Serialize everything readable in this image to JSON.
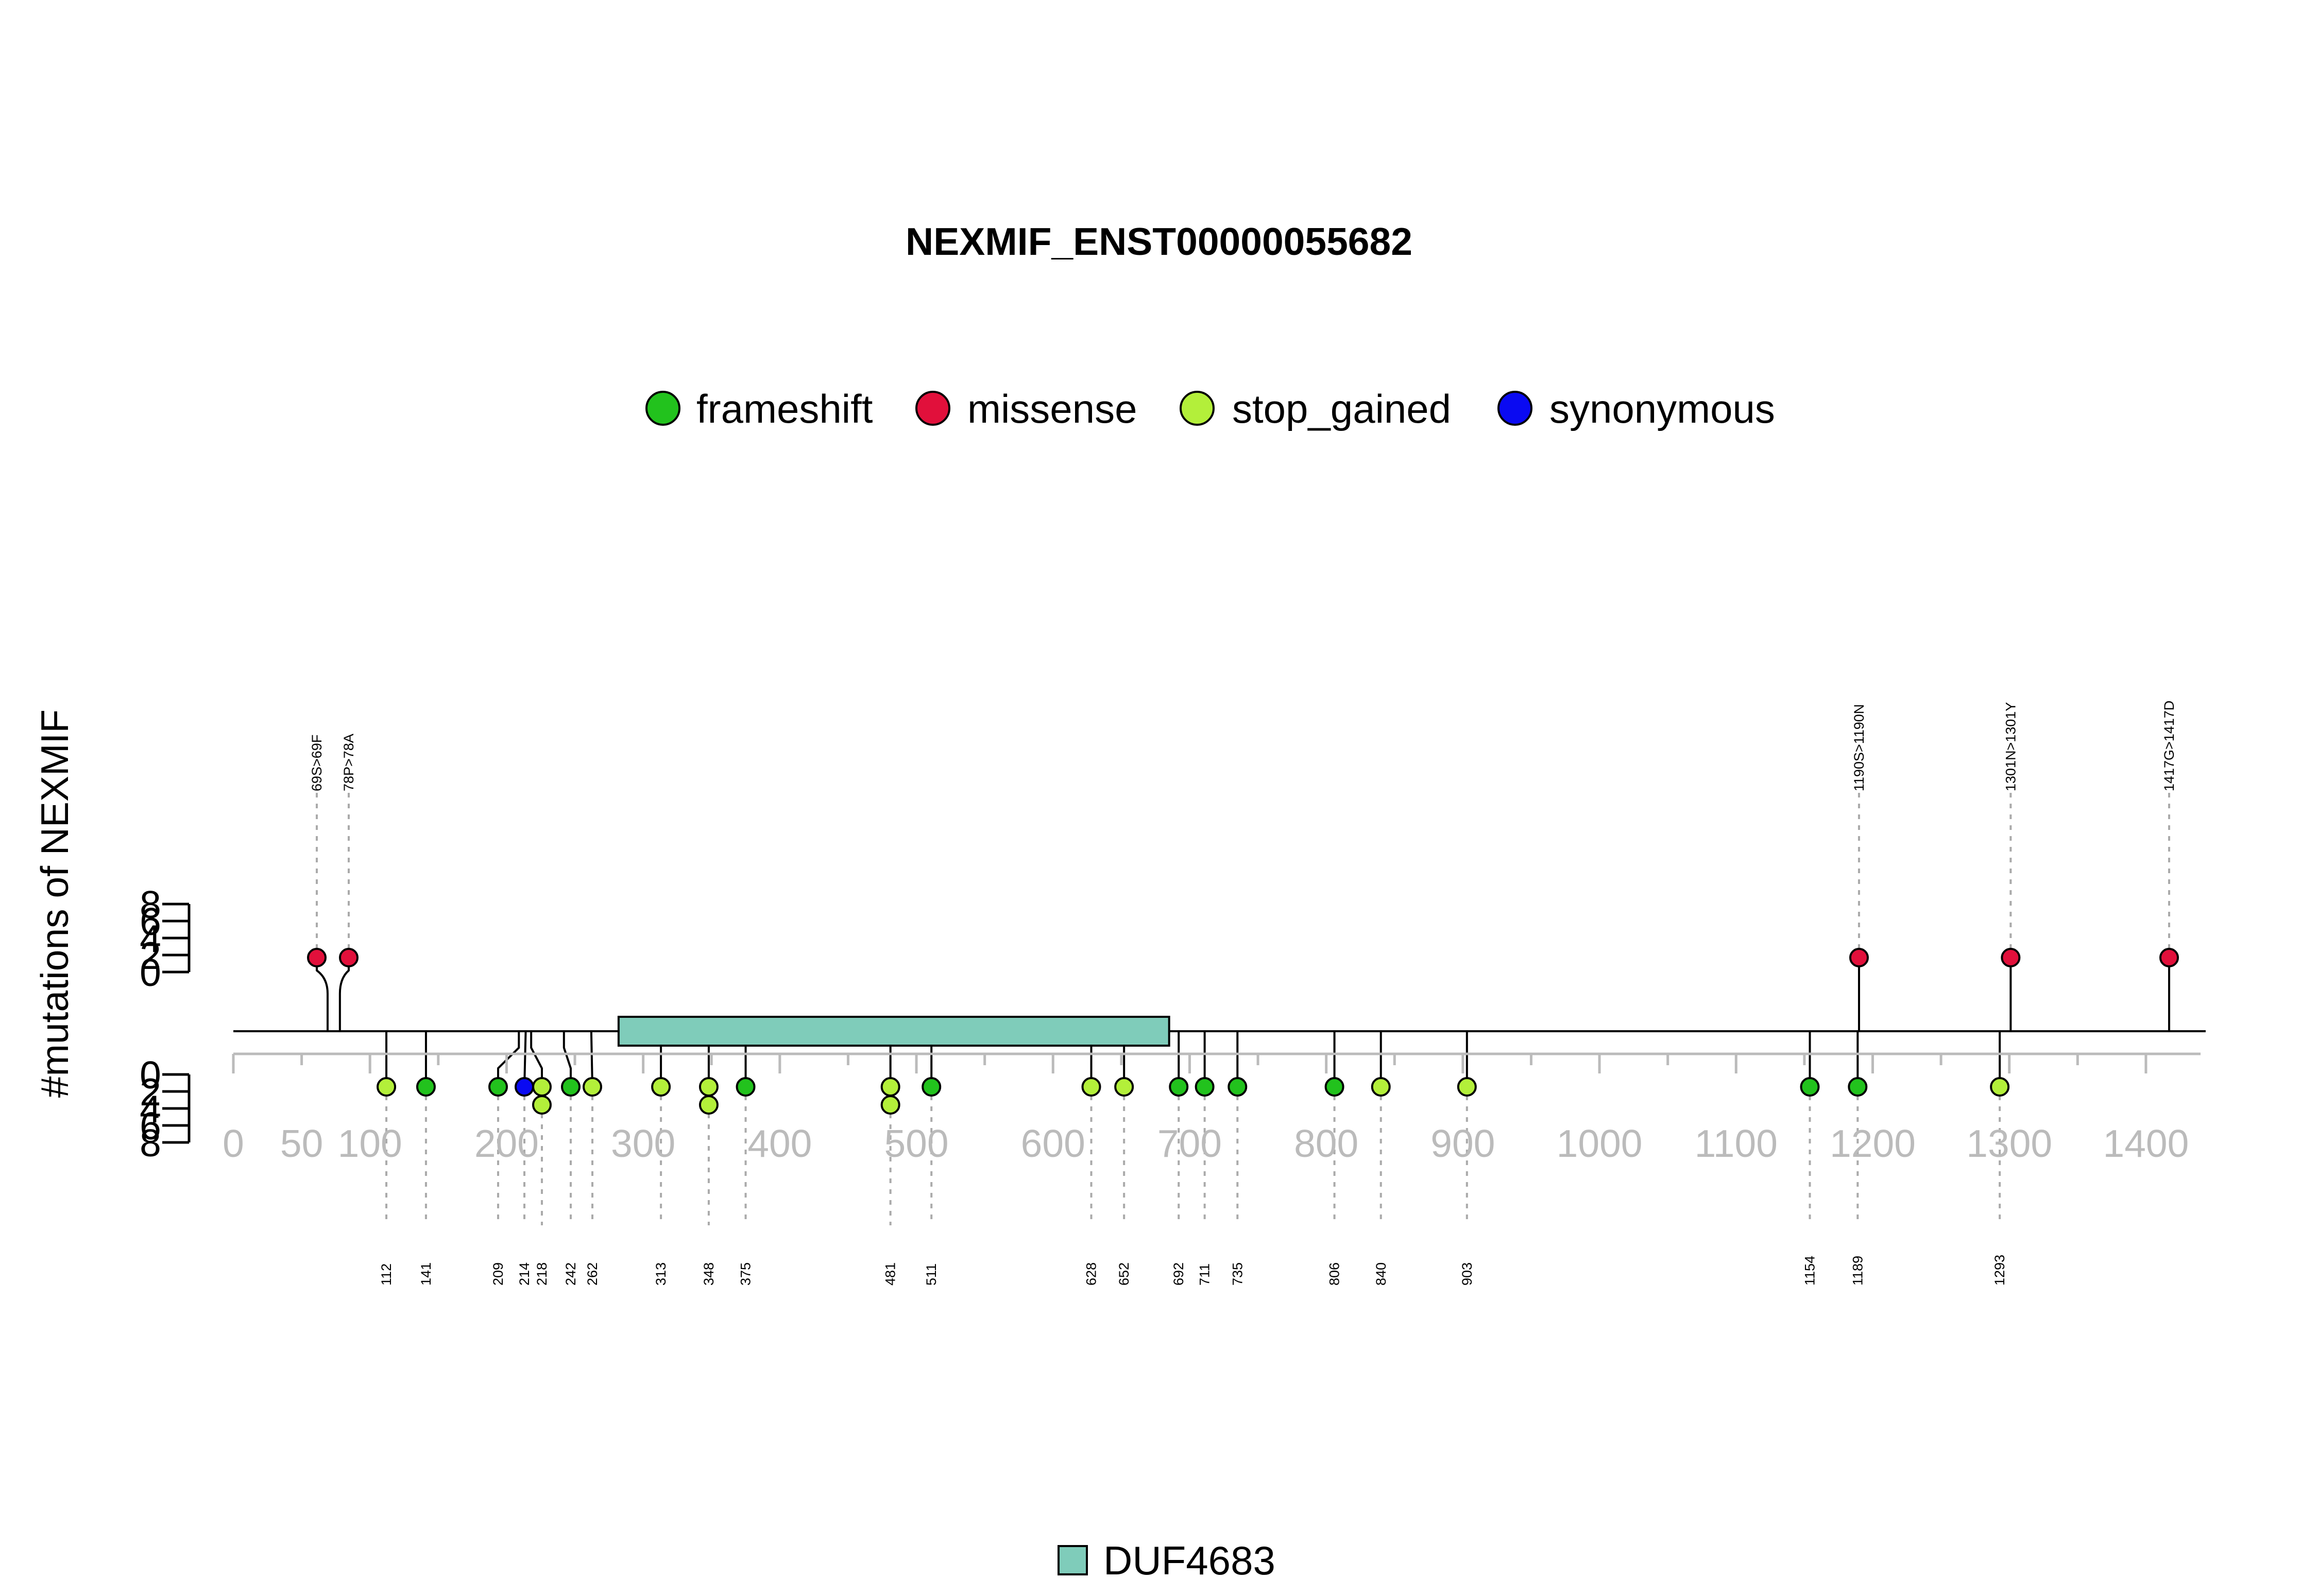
{
  "chart_data": {
    "type": "lollipop",
    "title": "NEXMIF_ENST00000055682",
    "ylabel": "#mutations of NEXMIF",
    "xlim": [
      0,
      1440
    ],
    "x_ticks": [
      0,
      50,
      100,
      200,
      300,
      400,
      500,
      600,
      700,
      800,
      900,
      1000,
      1100,
      1200,
      1300,
      1400
    ],
    "y_ticks_upper": [
      0,
      2,
      4,
      6,
      8
    ],
    "y_ticks_lower": [
      0,
      2,
      4,
      6,
      8
    ],
    "legend": {
      "placement": "top-center",
      "entries": [
        {
          "name": "frameshift",
          "color": "#22c21d"
        },
        {
          "name": "missense",
          "color": "#e1103b"
        },
        {
          "name": "stop_gained",
          "color": "#b3ef3a"
        },
        {
          "name": "synonymous",
          "color": "#0a0af2"
        }
      ]
    },
    "domain_legend": {
      "name": "DUF4683",
      "color": "#7fccba"
    },
    "domains": [
      {
        "name": "DUF4683",
        "start": 282,
        "end": 685,
        "color": "#7fccba"
      }
    ],
    "mutations_top": [
      {
        "position": 69,
        "label": "69S>69F",
        "type": "missense",
        "count": 1
      },
      {
        "position": 78,
        "label": "78P>78A",
        "type": "missense",
        "count": 1
      },
      {
        "position": 1190,
        "label": "1190S>1190N",
        "type": "missense",
        "count": 1
      },
      {
        "position": 1301,
        "label": "1301N>1301Y",
        "type": "missense",
        "count": 1
      },
      {
        "position": 1417,
        "label": "1417G>1417D",
        "type": "missense",
        "count": 1
      }
    ],
    "mutations_bottom": [
      {
        "position": 112,
        "label": "112",
        "types": [
          "stop_gained"
        ]
      },
      {
        "position": 141,
        "label": "141",
        "types": [
          "frameshift"
        ]
      },
      {
        "position": 209,
        "label": "209",
        "types": [
          "frameshift"
        ]
      },
      {
        "position": 214,
        "label": "214",
        "types": [
          "synonymous"
        ]
      },
      {
        "position": 218,
        "label": "218",
        "types": [
          "stop_gained",
          "stop_gained"
        ]
      },
      {
        "position": 242,
        "label": "242",
        "types": [
          "frameshift"
        ]
      },
      {
        "position": 262,
        "label": "262",
        "types": [
          "stop_gained"
        ]
      },
      {
        "position": 313,
        "label": "313",
        "types": [
          "stop_gained"
        ]
      },
      {
        "position": 348,
        "label": "348",
        "types": [
          "stop_gained",
          "stop_gained"
        ]
      },
      {
        "position": 375,
        "label": "375",
        "types": [
          "frameshift"
        ]
      },
      {
        "position": 481,
        "label": "481",
        "types": [
          "stop_gained",
          "stop_gained"
        ]
      },
      {
        "position": 511,
        "label": "511",
        "types": [
          "frameshift"
        ]
      },
      {
        "position": 628,
        "label": "628",
        "types": [
          "stop_gained"
        ]
      },
      {
        "position": 652,
        "label": "652",
        "types": [
          "stop_gained"
        ]
      },
      {
        "position": 692,
        "label": "692",
        "types": [
          "frameshift"
        ]
      },
      {
        "position": 711,
        "label": "711",
        "types": [
          "frameshift"
        ]
      },
      {
        "position": 735,
        "label": "735",
        "types": [
          "frameshift"
        ]
      },
      {
        "position": 806,
        "label": "806",
        "types": [
          "frameshift"
        ]
      },
      {
        "position": 840,
        "label": "840",
        "types": [
          "stop_gained"
        ]
      },
      {
        "position": 903,
        "label": "903",
        "types": [
          "stop_gained"
        ]
      },
      {
        "position": 1154,
        "label": "1154",
        "types": [
          "frameshift"
        ]
      },
      {
        "position": 1189,
        "label": "1189",
        "types": [
          "frameshift"
        ]
      },
      {
        "position": 1293,
        "label": "1293",
        "types": [
          "stop_gained"
        ]
      }
    ]
  }
}
